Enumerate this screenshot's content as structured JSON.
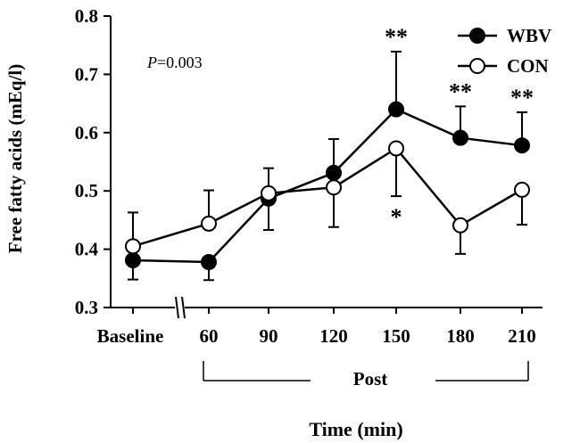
{
  "chart_data": {
    "type": "line",
    "ylabel": "Free fatty acids (mEq/l)",
    "xlabel": "Time (min)",
    "group_label": "Post",
    "annotation": {
      "p_italic": "P",
      "p_rest": "=0.003"
    },
    "ylim": [
      0.3,
      0.8
    ],
    "yticks": [
      "0.3",
      "0.4",
      "0.5",
      "0.6",
      "0.7",
      "0.8"
    ],
    "categories": [
      "Baseline",
      "60",
      "90",
      "120",
      "150",
      "180",
      "210"
    ],
    "legend_position": "top-right",
    "series": [
      {
        "name": "WBV",
        "marker": "filled",
        "values": [
          0.381,
          0.378,
          0.487,
          0.531,
          0.64,
          0.591,
          0.578
        ],
        "errors": [
          0.033,
          0.031,
          0.052,
          0.058,
          0.099,
          0.054,
          0.057
        ],
        "error_dir": [
          "down",
          "down",
          "up",
          "up",
          "up",
          "up",
          "up"
        ],
        "significance": [
          "",
          "",
          "",
          "",
          "**",
          "**",
          "**"
        ]
      },
      {
        "name": "CON",
        "marker": "open",
        "values": [
          0.405,
          0.444,
          0.496,
          0.506,
          0.573,
          0.441,
          0.502
        ],
        "errors": [
          0.058,
          0.057,
          0.063,
          0.068,
          0.082,
          0.049,
          0.06
        ],
        "error_dir": [
          "up",
          "up",
          "down",
          "down",
          "down",
          "down",
          "down"
        ],
        "significance": [
          "",
          "",
          "",
          "",
          "*",
          "",
          ""
        ]
      }
    ]
  }
}
